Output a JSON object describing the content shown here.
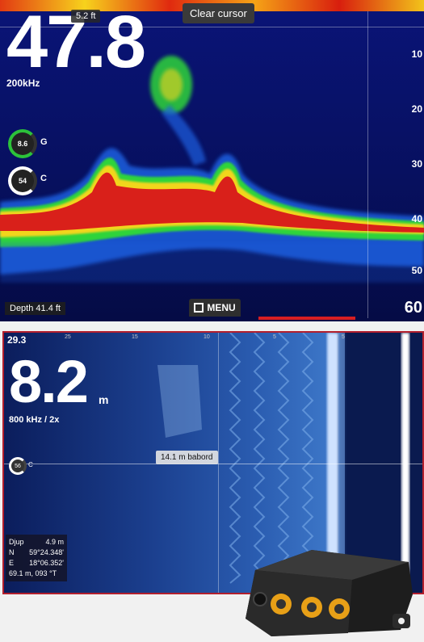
{
  "top_view": {
    "depth_value": "47.8",
    "frequency": "200kHz",
    "cursor_depth": "5.2 ft",
    "clear_cursor_label": "Clear cursor",
    "gain_label": "G",
    "gain_value": "8.6",
    "color_label": "C",
    "color_value": "54",
    "depth_readout": "Depth  41.4  ft",
    "menu_label": "MENU",
    "scale_labels": [
      "10",
      "20",
      "30",
      "40",
      "50"
    ],
    "scale_max": "60"
  },
  "bottom_view": {
    "range_value": "29.3",
    "depth_value": "8.2",
    "depth_unit": "m",
    "frequency": "800 kHz  / 2x",
    "contrast_value": "56",
    "contrast_label": "C",
    "cursor_label": "14.1 m babord",
    "top_scale": [
      "25",
      "15",
      "10",
      "5",
      "5"
    ],
    "info": {
      "depth_key": "Djup",
      "depth_val": "4.9 m",
      "lat_key": "N",
      "lat_val": "59°24.348'",
      "lon_key": "E",
      "lon_val": "18°06.352'",
      "bearing": "69.1 m, 093 °T"
    }
  },
  "colors": {
    "water_top": "#07105f",
    "frame_red": "#b21f2d",
    "side_blue": "#0a1a4f"
  }
}
